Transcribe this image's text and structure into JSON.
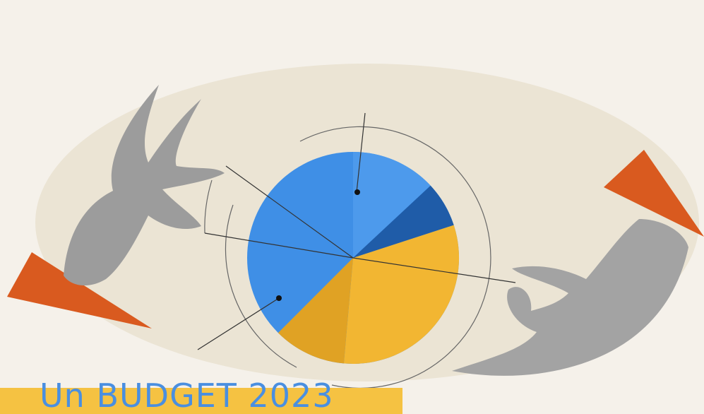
{
  "caption": {
    "text": "Un BUDGET 2023"
  }
}
